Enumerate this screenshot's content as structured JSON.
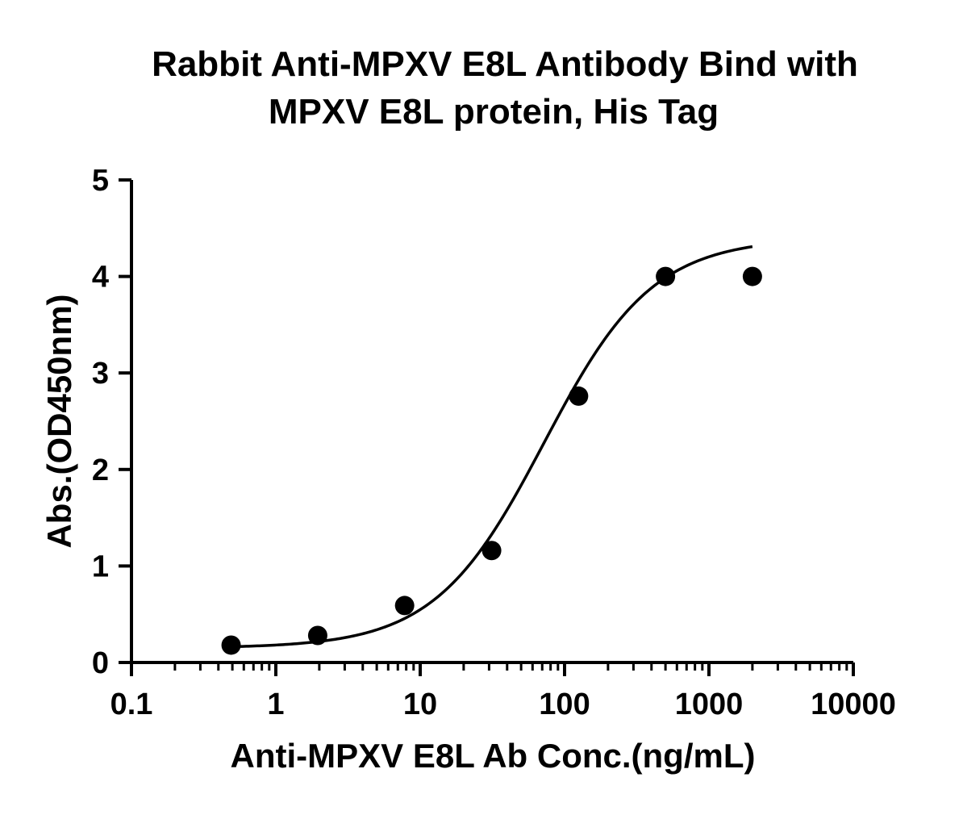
{
  "chart_data": {
    "type": "scatter",
    "title_lines": [
      "Rabbit Anti-MPXV E8L Antibody Bind with",
      "MPXV E8L protein, His Tag"
    ],
    "xlabel": "Anti-MPXV E8L Ab Conc.(ng/mL)",
    "ylabel": "Abs.(OD450nm)",
    "x_scale": "log10",
    "xlim": [
      0.1,
      10000
    ],
    "ylim": [
      0,
      5
    ],
    "x_ticks": [
      {
        "value": 0.1,
        "label": "0.1"
      },
      {
        "value": 1,
        "label": "1"
      },
      {
        "value": 10,
        "label": "10"
      },
      {
        "value": 100,
        "label": "100"
      },
      {
        "value": 1000,
        "label": "1000"
      },
      {
        "value": 10000,
        "label": "10000"
      }
    ],
    "y_ticks": [
      {
        "value": 0,
        "label": "0"
      },
      {
        "value": 1,
        "label": "1"
      },
      {
        "value": 2,
        "label": "2"
      },
      {
        "value": 3,
        "label": "3"
      },
      {
        "value": 4,
        "label": "4"
      },
      {
        "value": 5,
        "label": "5"
      }
    ],
    "grid": false,
    "legend": "none",
    "series": [
      {
        "x": [
          0.49,
          1.95,
          7.8,
          31.25,
          125,
          500,
          2000
        ],
        "y": [
          0.18,
          0.28,
          0.59,
          1.16,
          2.76,
          4.0,
          4.0
        ],
        "color": "#000000",
        "marker": "circle"
      }
    ],
    "fit_curve": {
      "model": "4PL",
      "bottom": 0.15,
      "top": 4.4,
      "ec50": 72,
      "hill": 1.15,
      "x_range": [
        0.49,
        2000
      ],
      "color": "#000000"
    }
  }
}
